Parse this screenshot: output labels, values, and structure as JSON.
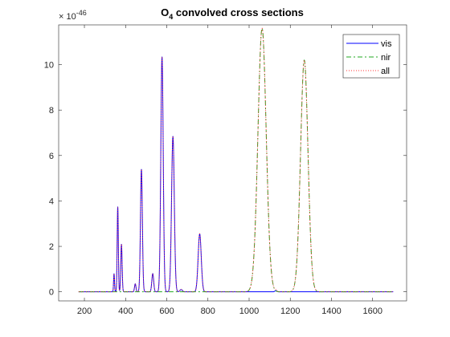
{
  "chart_data": {
    "type": "line",
    "title": {
      "main": "O",
      "sub": "4",
      "rest": " convolved cross sections"
    },
    "exponent_label": {
      "base": "× 10",
      "exp": "-46"
    },
    "xlim": [
      75,
      1765
    ],
    "ylim": [
      -0.4,
      11.75
    ],
    "xticks": [
      200,
      400,
      600,
      800,
      1000,
      1200,
      1400,
      1600
    ],
    "yticks": [
      0,
      2,
      4,
      6,
      8,
      10
    ],
    "grid": false,
    "legend_position": "top-right",
    "series": [
      {
        "name": "vis",
        "color": "#0000ff",
        "dash": "",
        "range": [
          172,
          1700
        ],
        "peaks": [
          [
            344,
            0.8,
            2.2
          ],
          [
            362,
            3.75,
            2.8
          ],
          [
            380,
            2.1,
            3.2
          ],
          [
            447,
            0.35,
            3.5
          ],
          [
            477,
            5.4,
            4.6
          ],
          [
            532,
            0.8,
            4.5
          ],
          [
            577,
            10.35,
            5.8
          ],
          [
            630,
            6.85,
            6.6
          ],
          [
            670,
            0.1,
            6
          ],
          [
            760,
            2.55,
            7.5
          ],
          [
            1130,
            0.05,
            5
          ]
        ]
      },
      {
        "name": "nir",
        "color": "#22aa22",
        "dash": "6,3,2,3",
        "range": [
          172,
          1700
        ],
        "peaks": [
          [
            1063,
            11.6,
            20
          ],
          [
            1268,
            10.2,
            18
          ]
        ]
      },
      {
        "name": "all",
        "color": "#ff3333",
        "dash": "1,2",
        "range": [
          172,
          1700
        ],
        "peaks": [
          [
            344,
            0.8,
            2.2
          ],
          [
            362,
            3.75,
            2.8
          ],
          [
            380,
            2.1,
            3.2
          ],
          [
            447,
            0.35,
            3.5
          ],
          [
            477,
            5.4,
            4.6
          ],
          [
            532,
            0.8,
            4.5
          ],
          [
            577,
            10.35,
            5.8
          ],
          [
            630,
            6.85,
            6.6
          ],
          [
            670,
            0.1,
            6
          ],
          [
            760,
            2.55,
            7.5
          ],
          [
            1130,
            0.05,
            5
          ],
          [
            1063,
            11.6,
            20
          ],
          [
            1268,
            10.2,
            18
          ]
        ]
      }
    ]
  }
}
